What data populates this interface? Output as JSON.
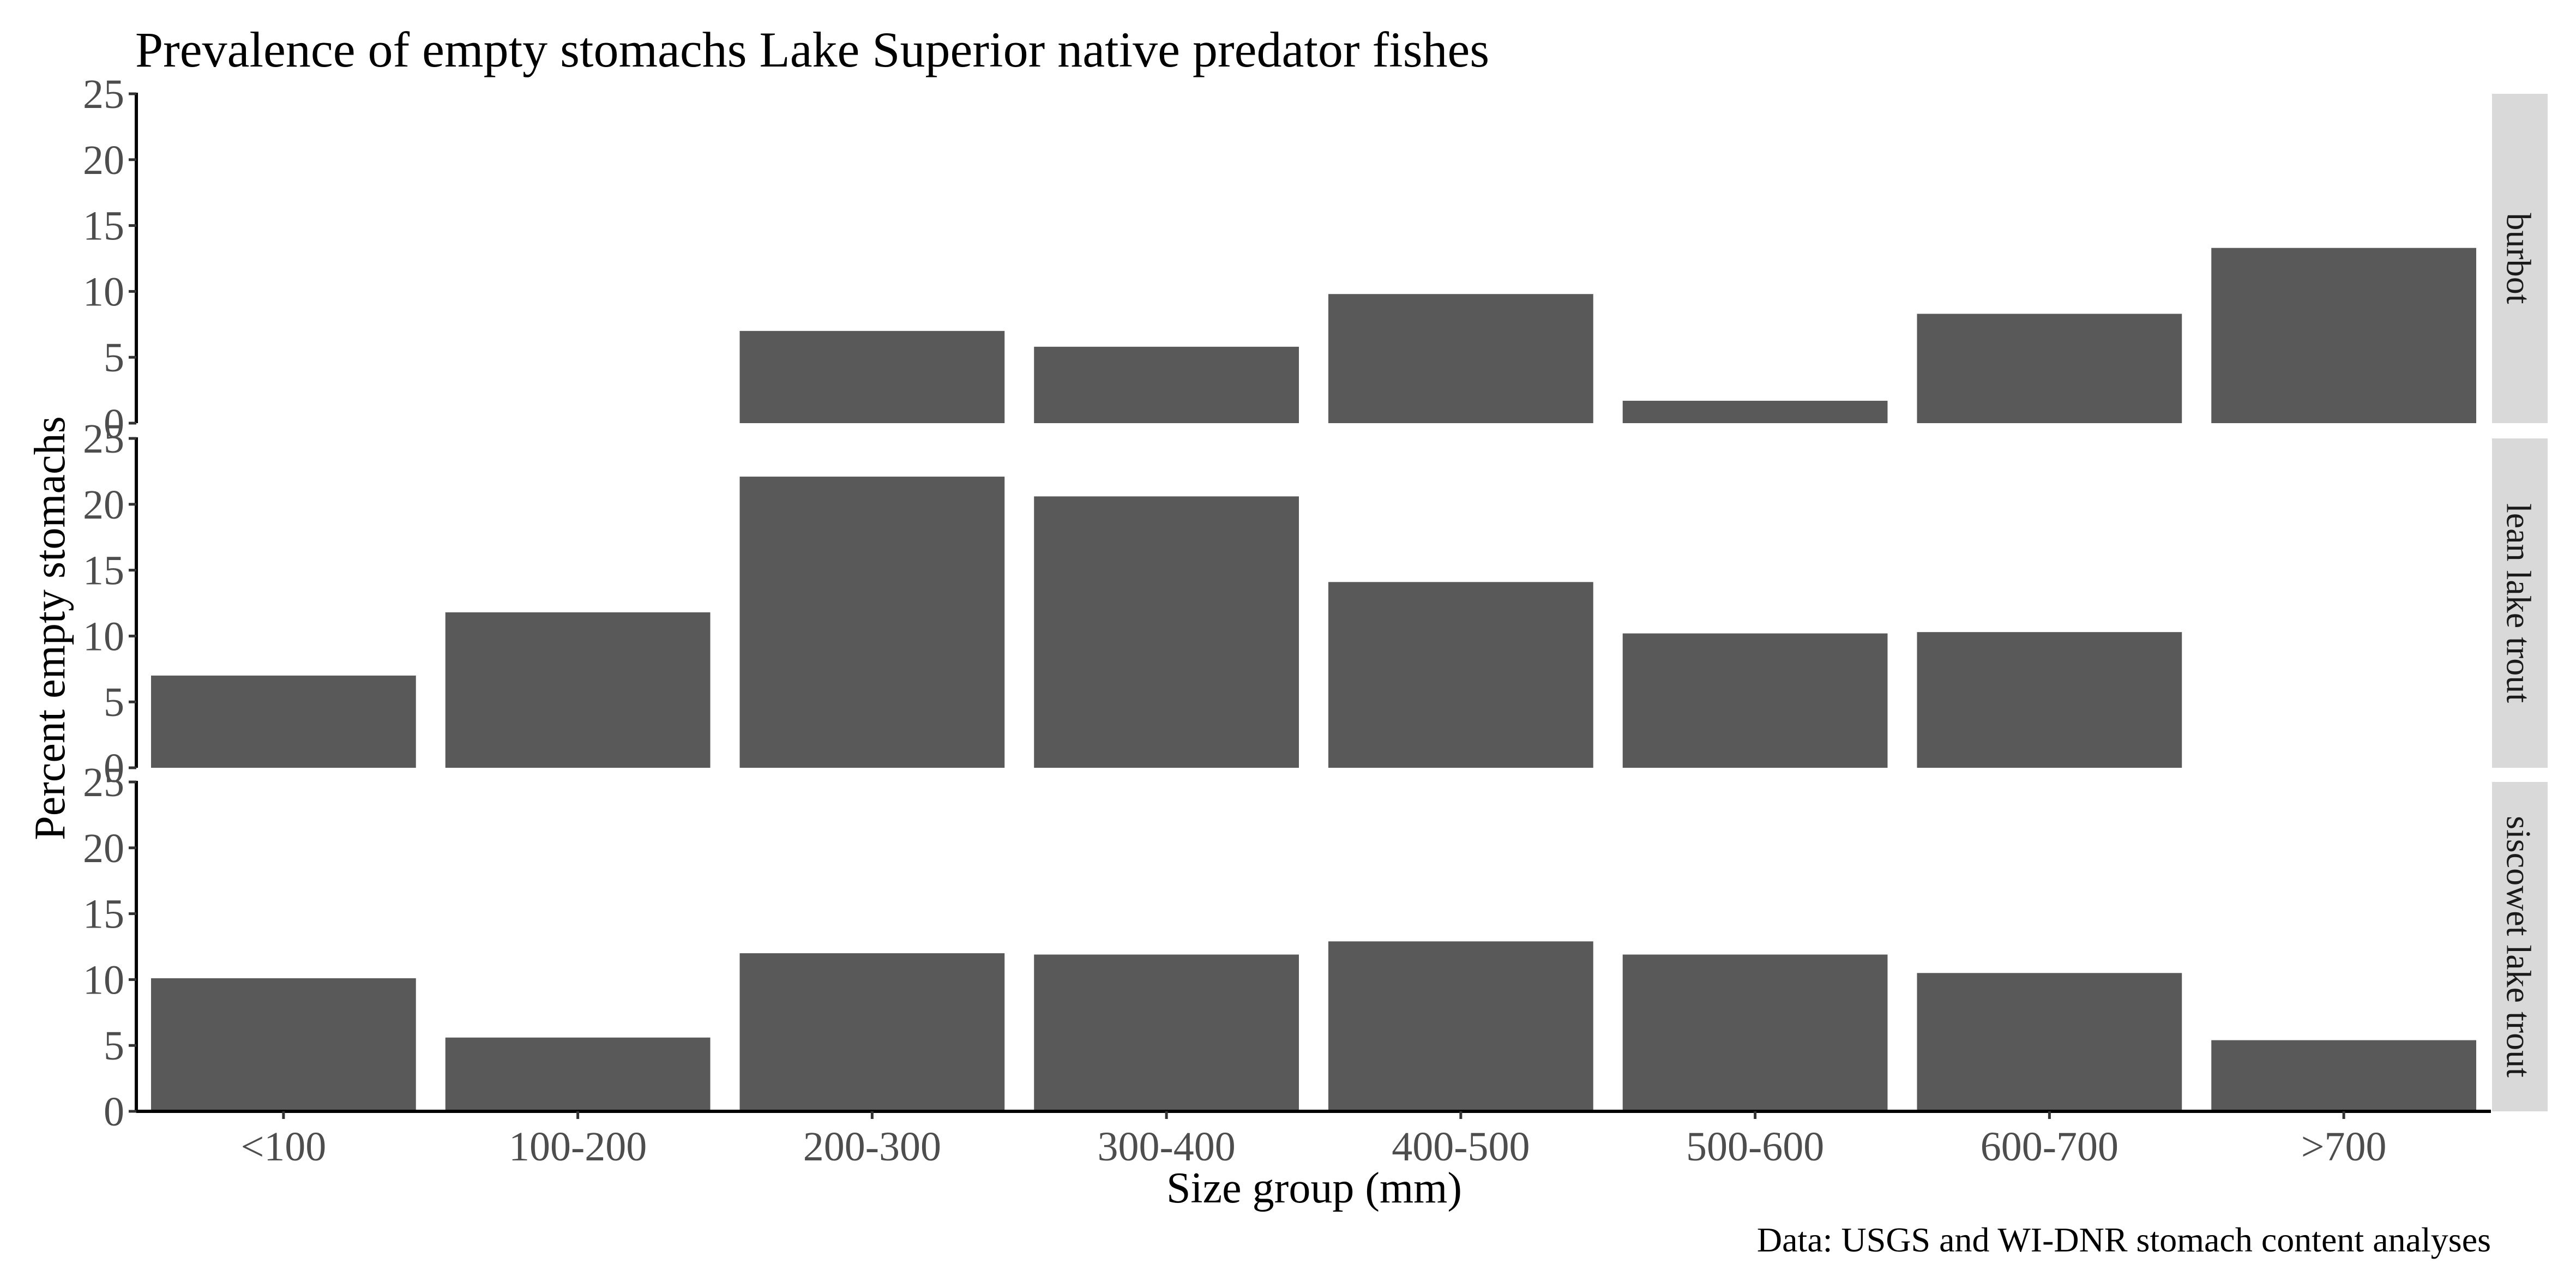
{
  "chart_data": {
    "type": "bar",
    "title": "Prevalence of empty stomachs Lake Superior native predator fishes",
    "xlabel": "Size group (mm)",
    "ylabel": "Percent empty stomachs",
    "caption": "Data: USGS and WI-DNR stomach content analyses",
    "categories": [
      "<100",
      "100-200",
      "200-300",
      "300-400",
      "400-500",
      "500-600",
      "600-700",
      ">700"
    ],
    "ylim": [
      0,
      25
    ],
    "yticks": [
      0,
      5,
      10,
      15,
      20,
      25
    ],
    "facet_layout": "rows, shared x axis, strip labels on right",
    "grid": false,
    "bar_color": "#595959",
    "strip_color": "#d9d9d9",
    "facets": [
      {
        "label": "burbot",
        "values": [
          null,
          null,
          7.0,
          5.8,
          9.8,
          1.7,
          8.3,
          13.3
        ]
      },
      {
        "label": "lean lake trout",
        "values": [
          7.0,
          11.8,
          22.1,
          20.6,
          14.1,
          10.2,
          10.3,
          null
        ]
      },
      {
        "label": "siscowet lake trout",
        "values": [
          10.1,
          5.6,
          12.0,
          11.9,
          12.9,
          11.9,
          10.5,
          5.4
        ]
      }
    ]
  }
}
